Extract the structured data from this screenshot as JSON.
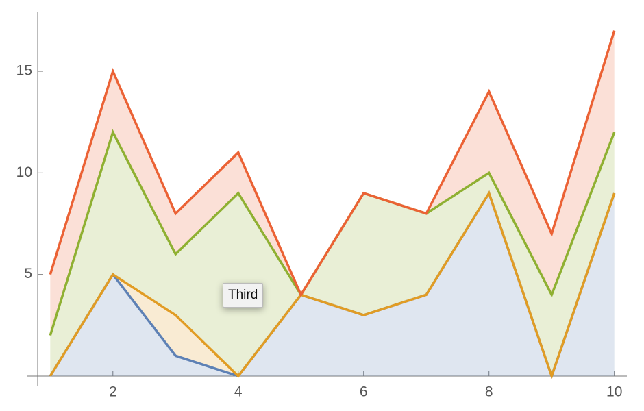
{
  "chart_data": {
    "type": "stacked_area",
    "x": [
      1,
      2,
      3,
      4,
      5,
      6,
      7,
      8,
      9,
      10
    ],
    "series": [
      {
        "color": "#5e81b5",
        "values": [
          0,
          5,
          1,
          0,
          4,
          3,
          4,
          9,
          0,
          9
        ]
      },
      {
        "color": "#e19c24",
        "values": [
          0,
          0,
          2,
          0,
          0,
          0,
          0,
          0,
          0,
          0
        ]
      },
      {
        "color": "#8fb032",
        "values": [
          2,
          7,
          3,
          9,
          0,
          6,
          4,
          1,
          4,
          3
        ]
      },
      {
        "color": "#eb6235",
        "values": [
          3,
          3,
          2,
          2,
          0,
          0,
          0,
          4,
          3,
          5
        ]
      }
    ],
    "xlim": [
      0.8,
      10.2
    ],
    "ylim": [
      0,
      17.9
    ],
    "xticks": [
      2,
      4,
      6,
      8,
      10
    ],
    "yticks": [
      5,
      10,
      15
    ],
    "tooltip": "Third"
  }
}
